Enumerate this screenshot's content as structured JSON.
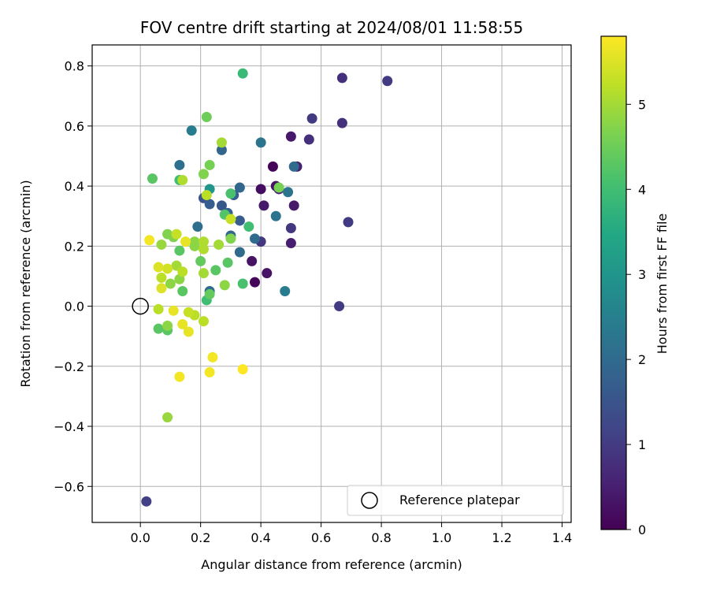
{
  "chart_data": {
    "type": "scatter",
    "title": "FOV centre drift starting at 2024/08/01 11:58:55",
    "xlabel": "Angular distance from reference (arcmin)",
    "ylabel": "Rotation from reference (arcmin)",
    "xlim": [
      -0.16,
      1.43
    ],
    "ylim": [
      -0.72,
      0.87
    ],
    "xticks": [
      0.0,
      0.2,
      0.4,
      0.6,
      0.8,
      1.0,
      1.2,
      1.4
    ],
    "xtick_labels": [
      "0.0",
      "0.2",
      "0.4",
      "0.6",
      "0.8",
      "1.0",
      "1.2",
      "1.4"
    ],
    "yticks": [
      -0.6,
      -0.4,
      -0.2,
      0.0,
      0.2,
      0.4,
      0.6,
      0.8
    ],
    "ytick_labels": [
      "−0.6",
      "−0.4",
      "−0.2",
      "0.0",
      "0.2",
      "0.4",
      "0.6",
      "0.8"
    ],
    "grid": true,
    "colormap": "viridis",
    "colorbar": {
      "label": "Hours from first FF file",
      "range": [
        0,
        5.8
      ],
      "ticks": [
        0,
        1,
        2,
        3,
        4,
        5
      ],
      "tick_labels": [
        "0",
        "1",
        "2",
        "3",
        "4",
        "5"
      ]
    },
    "reference": {
      "label": "Reference platepar",
      "x": 0.0,
      "y": 0.0
    },
    "legend": {
      "position": "lower-right"
    },
    "points": [
      {
        "x": 0.44,
        "y": 0.465,
        "hours": 0.05
      },
      {
        "x": 0.38,
        "y": 0.08,
        "hours": 0.1
      },
      {
        "x": 0.4,
        "y": 0.39,
        "hours": 0.2
      },
      {
        "x": 0.42,
        "y": 0.11,
        "hours": 0.3
      },
      {
        "x": 0.45,
        "y": 0.4,
        "hours": 0.3
      },
      {
        "x": 0.37,
        "y": 0.15,
        "hours": 0.3
      },
      {
        "x": 0.41,
        "y": 0.335,
        "hours": 0.4
      },
      {
        "x": 0.5,
        "y": 0.565,
        "hours": 0.4
      },
      {
        "x": 0.51,
        "y": 0.335,
        "hours": 0.4
      },
      {
        "x": 0.52,
        "y": 0.465,
        "hours": 0.5
      },
      {
        "x": 0.5,
        "y": 0.21,
        "hours": 0.5
      },
      {
        "x": 0.46,
        "y": 0.39,
        "hours": 0.5
      },
      {
        "x": 0.67,
        "y": 0.76,
        "hours": 0.8
      },
      {
        "x": 0.56,
        "y": 0.555,
        "hours": 0.8
      },
      {
        "x": 0.67,
        "y": 0.61,
        "hours": 0.8
      },
      {
        "x": 0.5,
        "y": 0.26,
        "hours": 0.9
      },
      {
        "x": 0.4,
        "y": 0.215,
        "hours": 0.9
      },
      {
        "x": 0.82,
        "y": 0.75,
        "hours": 1.0
      },
      {
        "x": 0.69,
        "y": 0.28,
        "hours": 1.0
      },
      {
        "x": 0.57,
        "y": 0.625,
        "hours": 1.0
      },
      {
        "x": 0.66,
        "y": 0.0,
        "hours": 1.0
      },
      {
        "x": 0.02,
        "y": -0.65,
        "hours": 1.1
      },
      {
        "x": 0.21,
        "y": 0.36,
        "hours": 1.5
      },
      {
        "x": 0.27,
        "y": 0.335,
        "hours": 1.6
      },
      {
        "x": 0.23,
        "y": 0.34,
        "hours": 1.7
      },
      {
        "x": 0.31,
        "y": 0.37,
        "hours": 1.7
      },
      {
        "x": 0.33,
        "y": 0.285,
        "hours": 1.7
      },
      {
        "x": 0.29,
        "y": 0.31,
        "hours": 1.8
      },
      {
        "x": 0.27,
        "y": 0.52,
        "hours": 1.9
      },
      {
        "x": 0.33,
        "y": 0.395,
        "hours": 1.9
      },
      {
        "x": 0.3,
        "y": 0.235,
        "hours": 1.9
      },
      {
        "x": 0.33,
        "y": 0.18,
        "hours": 2.0
      },
      {
        "x": 0.38,
        "y": 0.225,
        "hours": 2.0
      },
      {
        "x": 0.51,
        "y": 0.465,
        "hours": 2.0
      },
      {
        "x": 0.23,
        "y": 0.05,
        "hours": 2.0
      },
      {
        "x": 0.19,
        "y": 0.265,
        "hours": 2.1
      },
      {
        "x": 0.13,
        "y": 0.47,
        "hours": 2.1
      },
      {
        "x": 0.4,
        "y": 0.545,
        "hours": 2.2
      },
      {
        "x": 0.45,
        "y": 0.3,
        "hours": 2.2
      },
      {
        "x": 0.49,
        "y": 0.38,
        "hours": 2.2
      },
      {
        "x": 0.17,
        "y": 0.585,
        "hours": 2.4
      },
      {
        "x": 0.48,
        "y": 0.05,
        "hours": 2.4
      },
      {
        "x": 0.23,
        "y": 0.39,
        "hours": 3.0
      },
      {
        "x": 0.34,
        "y": 0.775,
        "hours": 3.9
      },
      {
        "x": 0.13,
        "y": 0.42,
        "hours": 4.0
      },
      {
        "x": 0.22,
        "y": 0.02,
        "hours": 4.0
      },
      {
        "x": 0.36,
        "y": 0.265,
        "hours": 4.0
      },
      {
        "x": 0.3,
        "y": 0.375,
        "hours": 4.1
      },
      {
        "x": 0.34,
        "y": 0.075,
        "hours": 4.1
      },
      {
        "x": 0.28,
        "y": 0.305,
        "hours": 4.2
      },
      {
        "x": 0.29,
        "y": 0.145,
        "hours": 4.3
      },
      {
        "x": 0.04,
        "y": 0.425,
        "hours": 4.3
      },
      {
        "x": 0.06,
        "y": -0.075,
        "hours": 4.3
      },
      {
        "x": 0.09,
        "y": -0.08,
        "hours": 4.3
      },
      {
        "x": 0.14,
        "y": 0.05,
        "hours": 4.3
      },
      {
        "x": 0.13,
        "y": 0.185,
        "hours": 4.3
      },
      {
        "x": 0.25,
        "y": 0.12,
        "hours": 4.3
      },
      {
        "x": 0.2,
        "y": 0.15,
        "hours": 4.4
      },
      {
        "x": 0.23,
        "y": 0.04,
        "hours": 4.4
      },
      {
        "x": 0.22,
        "y": 0.63,
        "hours": 4.5
      },
      {
        "x": 0.46,
        "y": 0.395,
        "hours": 4.6
      },
      {
        "x": 0.23,
        "y": 0.47,
        "hours": 4.6
      },
      {
        "x": 0.21,
        "y": 0.44,
        "hours": 4.7
      },
      {
        "x": 0.09,
        "y": 0.24,
        "hours": 4.7
      },
      {
        "x": 0.3,
        "y": 0.225,
        "hours": 4.7
      },
      {
        "x": 0.11,
        "y": 0.23,
        "hours": 4.7
      },
      {
        "x": 0.18,
        "y": 0.215,
        "hours": 4.8
      },
      {
        "x": 0.18,
        "y": 0.2,
        "hours": 4.8
      },
      {
        "x": 0.28,
        "y": 0.07,
        "hours": 4.8
      },
      {
        "x": 0.1,
        "y": 0.075,
        "hours": 4.8
      },
      {
        "x": 0.13,
        "y": 0.09,
        "hours": 4.8
      },
      {
        "x": 0.09,
        "y": -0.065,
        "hours": 4.8
      },
      {
        "x": 0.07,
        "y": 0.205,
        "hours": 4.9
      },
      {
        "x": 0.09,
        "y": -0.37,
        "hours": 4.9
      },
      {
        "x": 0.27,
        "y": 0.545,
        "hours": 5.0
      },
      {
        "x": 0.12,
        "y": 0.135,
        "hours": 5.0
      },
      {
        "x": 0.21,
        "y": 0.11,
        "hours": 5.0
      },
      {
        "x": 0.26,
        "y": 0.205,
        "hours": 5.0
      },
      {
        "x": 0.21,
        "y": 0.19,
        "hours": 5.1
      },
      {
        "x": 0.21,
        "y": 0.215,
        "hours": 5.1
      },
      {
        "x": 0.14,
        "y": 0.42,
        "hours": 5.1
      },
      {
        "x": 0.21,
        "y": -0.05,
        "hours": 5.2
      },
      {
        "x": 0.22,
        "y": 0.37,
        "hours": 5.2
      },
      {
        "x": 0.06,
        "y": -0.01,
        "hours": 5.2
      },
      {
        "x": 0.07,
        "y": 0.095,
        "hours": 5.2
      },
      {
        "x": 0.14,
        "y": 0.115,
        "hours": 5.2
      },
      {
        "x": 0.18,
        "y": -0.03,
        "hours": 5.2
      },
      {
        "x": 0.16,
        "y": -0.02,
        "hours": 5.3
      },
      {
        "x": 0.12,
        "y": 0.24,
        "hours": 5.3
      },
      {
        "x": 0.3,
        "y": 0.29,
        "hours": 5.3
      },
      {
        "x": 0.09,
        "y": 0.125,
        "hours": 5.4
      },
      {
        "x": 0.06,
        "y": 0.13,
        "hours": 5.5
      },
      {
        "x": 0.07,
        "y": 0.06,
        "hours": 5.5
      },
      {
        "x": 0.11,
        "y": -0.015,
        "hours": 5.6
      },
      {
        "x": 0.14,
        "y": -0.06,
        "hours": 5.6
      },
      {
        "x": 0.16,
        "y": -0.085,
        "hours": 5.6
      },
      {
        "x": 0.15,
        "y": 0.215,
        "hours": 5.6
      },
      {
        "x": 0.03,
        "y": 0.22,
        "hours": 5.7
      },
      {
        "x": 0.13,
        "y": -0.235,
        "hours": 5.7
      },
      {
        "x": 0.23,
        "y": -0.22,
        "hours": 5.7
      },
      {
        "x": 0.24,
        "y": -0.17,
        "hours": 5.7
      },
      {
        "x": 0.34,
        "y": -0.21,
        "hours": 5.8
      }
    ]
  }
}
